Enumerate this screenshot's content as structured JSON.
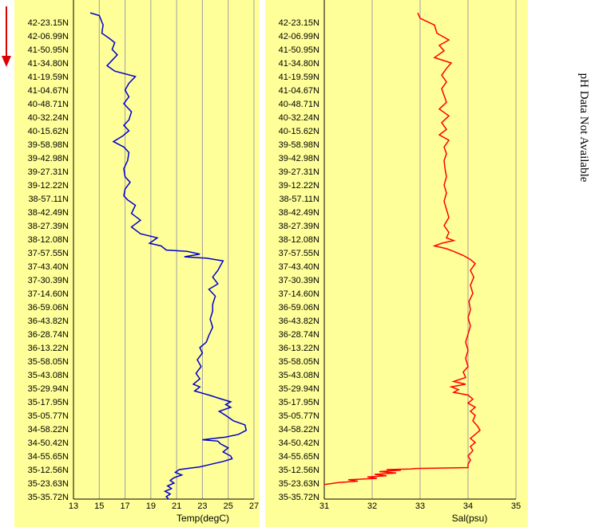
{
  "chart_data": [
    {
      "type": "line",
      "xlabel": "Temp(degC)",
      "ylabel": "",
      "xlim": [
        13,
        27
      ],
      "xticks": [
        13,
        15,
        17,
        19,
        21,
        23,
        25,
        27
      ],
      "grid": true,
      "color": "#0000cc",
      "y_categories": [
        "42-23.15N",
        "42-06.99N",
        "41-50.95N",
        "41-34.80N",
        "41-19.59N",
        "41-04.67N",
        "40-48.71N",
        "40-32.24N",
        "40-15.62N",
        "39-58.98N",
        "39-42.98N",
        "39-27.31N",
        "39-12.22N",
        "38-57.11N",
        "38-42.49N",
        "38-27.39N",
        "38-12.08N",
        "37-57.55N",
        "37-43.40N",
        "37-30.39N",
        "37-14.60N",
        "36-59.06N",
        "36-43.82N",
        "36-28.74N",
        "36-13.22N",
        "35-58.05N",
        "35-43.08N",
        "35-29.94N",
        "35-17.95N",
        "35-05.77N",
        "34-58.22N",
        "34-50.42N",
        "34-55.65N",
        "35-12.56N",
        "35-23.63N",
        "35-35.72N"
      ],
      "series": [
        {
          "points": [
            [
              14.3,
              -0.7
            ],
            [
              15.0,
              -0.5
            ],
            [
              15.3,
              0.2
            ],
            [
              15.2,
              0.8
            ],
            [
              15.8,
              1.2
            ],
            [
              16.2,
              1.5
            ],
            [
              16.0,
              2.0
            ],
            [
              16.4,
              2.4
            ],
            [
              15.9,
              2.9
            ],
            [
              15.6,
              3.2
            ],
            [
              16.2,
              3.6
            ],
            [
              17.8,
              4.0
            ],
            [
              17.3,
              4.5
            ],
            [
              17.0,
              5.0
            ],
            [
              17.3,
              5.5
            ],
            [
              16.9,
              6.0
            ],
            [
              17.5,
              6.6
            ],
            [
              17.3,
              7.2
            ],
            [
              16.9,
              7.6
            ],
            [
              17.3,
              8.0
            ],
            [
              16.8,
              8.4
            ],
            [
              16.1,
              8.8
            ],
            [
              16.9,
              9.2
            ],
            [
              17.3,
              9.6
            ],
            [
              17.2,
              10.2
            ],
            [
              16.9,
              10.8
            ],
            [
              17.0,
              11.4
            ],
            [
              17.4,
              11.8
            ],
            [
              17.0,
              12.3
            ],
            [
              16.9,
              12.8
            ],
            [
              17.2,
              13.1
            ],
            [
              17.8,
              13.5
            ],
            [
              17.5,
              14.1
            ],
            [
              18.2,
              14.6
            ],
            [
              17.5,
              15.1
            ],
            [
              18.2,
              15.6
            ],
            [
              19.5,
              15.9
            ],
            [
              18.9,
              16.3
            ],
            [
              19.8,
              16.5
            ],
            [
              20.2,
              16.8
            ],
            [
              21.8,
              16.9
            ],
            [
              22.8,
              17.1
            ],
            [
              21.6,
              17.3
            ],
            [
              23.3,
              17.4
            ],
            [
              24.6,
              17.6
            ],
            [
              24.2,
              18.3
            ],
            [
              23.8,
              18.8
            ],
            [
              24.2,
              19.3
            ],
            [
              23.5,
              19.7
            ],
            [
              24.0,
              20.2
            ],
            [
              23.8,
              20.8
            ],
            [
              23.8,
              21.3
            ],
            [
              23.6,
              21.9
            ],
            [
              23.8,
              22.5
            ],
            [
              23.5,
              23.1
            ],
            [
              23.3,
              23.6
            ],
            [
              22.8,
              24.0
            ],
            [
              23.0,
              24.4
            ],
            [
              22.6,
              24.9
            ],
            [
              22.9,
              25.4
            ],
            [
              22.5,
              25.9
            ],
            [
              22.8,
              26.3
            ],
            [
              22.3,
              26.7
            ],
            [
              22.8,
              26.9
            ],
            [
              22.4,
              27.2
            ],
            [
              23.5,
              27.5
            ],
            [
              24.5,
              27.8
            ],
            [
              25.2,
              28.0
            ],
            [
              24.8,
              28.2
            ],
            [
              25.2,
              28.4
            ],
            [
              24.3,
              28.7
            ],
            [
              24.8,
              29.0
            ],
            [
              25.4,
              29.4
            ],
            [
              26.3,
              29.7
            ],
            [
              26.4,
              30.1
            ],
            [
              25.8,
              30.4
            ],
            [
              24.8,
              30.6
            ],
            [
              23.0,
              30.8
            ],
            [
              24.2,
              30.9
            ],
            [
              24.4,
              31.1
            ],
            [
              25.0,
              31.4
            ],
            [
              24.6,
              31.7
            ],
            [
              25.2,
              32.0
            ],
            [
              25.3,
              32.2
            ],
            [
              24.6,
              32.4
            ],
            [
              23.7,
              32.6
            ],
            [
              22.8,
              32.8
            ],
            [
              22.0,
              32.9
            ],
            [
              21.2,
              33.0
            ],
            [
              20.9,
              33.2
            ],
            [
              21.4,
              33.4
            ],
            [
              20.8,
              33.6
            ],
            [
              20.5,
              33.8
            ],
            [
              20.8,
              34.0
            ],
            [
              20.3,
              34.2
            ],
            [
              20.6,
              34.4
            ],
            [
              20.1,
              34.6
            ],
            [
              20.5,
              34.8
            ],
            [
              20.2,
              35.0
            ],
            [
              20.4,
              35.2
            ],
            [
              20.0,
              35.5
            ],
            [
              20.5,
              35.8
            ]
          ]
        }
      ]
    },
    {
      "type": "line",
      "xlabel": "Sal(psu)",
      "ylabel": "",
      "xlim": [
        31,
        35
      ],
      "xticks": [
        31,
        32,
        33,
        34,
        35
      ],
      "grid": true,
      "color": "#ff0000",
      "y_categories": [
        "42-23.15N",
        "42-06.99N",
        "41-50.95N",
        "41-34.80N",
        "41-19.59N",
        "41-04.67N",
        "40-48.71N",
        "40-32.24N",
        "40-15.62N",
        "39-58.98N",
        "39-42.98N",
        "39-27.31N",
        "39-12.22N",
        "38-57.11N",
        "38-42.49N",
        "38-27.39N",
        "38-12.08N",
        "37-57.55N",
        "37-43.40N",
        "37-30.39N",
        "37-14.60N",
        "36-59.06N",
        "36-43.82N",
        "36-28.74N",
        "36-13.22N",
        "35-58.05N",
        "35-43.08N",
        "35-29.94N",
        "35-17.95N",
        "35-05.77N",
        "34-58.22N",
        "34-50.42N",
        "34-55.65N",
        "35-12.56N",
        "35-23.63N",
        "35-35.72N"
      ],
      "series": [
        {
          "points": [
            [
              32.95,
              -0.7
            ],
            [
              33.0,
              -0.3
            ],
            [
              33.3,
              0.2
            ],
            [
              33.35,
              0.8
            ],
            [
              33.6,
              1.3
            ],
            [
              33.4,
              1.7
            ],
            [
              33.5,
              2.1
            ],
            [
              33.3,
              2.6
            ],
            [
              33.65,
              3.0
            ],
            [
              33.55,
              3.4
            ],
            [
              33.45,
              3.9
            ],
            [
              33.55,
              4.4
            ],
            [
              33.45,
              4.9
            ],
            [
              33.5,
              5.4
            ],
            [
              33.55,
              5.9
            ],
            [
              33.4,
              6.4
            ],
            [
              33.6,
              6.9
            ],
            [
              33.45,
              7.4
            ],
            [
              33.55,
              7.9
            ],
            [
              33.4,
              8.3
            ],
            [
              33.6,
              8.7
            ],
            [
              33.5,
              9.2
            ],
            [
              33.55,
              9.7
            ],
            [
              33.5,
              10.2
            ],
            [
              33.52,
              10.8
            ],
            [
              33.55,
              11.4
            ],
            [
              33.5,
              12.0
            ],
            [
              33.55,
              12.6
            ],
            [
              33.5,
              13.2
            ],
            [
              33.55,
              13.8
            ],
            [
              33.6,
              14.4
            ],
            [
              33.5,
              15.0
            ],
            [
              33.6,
              15.5
            ],
            [
              33.55,
              15.9
            ],
            [
              33.7,
              16.1
            ],
            [
              33.45,
              16.3
            ],
            [
              33.3,
              16.5
            ],
            [
              33.55,
              16.7
            ],
            [
              33.7,
              16.9
            ],
            [
              33.9,
              17.2
            ],
            [
              34.05,
              17.5
            ],
            [
              34.15,
              17.8
            ],
            [
              34.05,
              18.3
            ],
            [
              34.12,
              18.8
            ],
            [
              34.05,
              19.4
            ],
            [
              34.1,
              20.0
            ],
            [
              34.02,
              20.6
            ],
            [
              34.05,
              21.2
            ],
            [
              34.0,
              21.8
            ],
            [
              34.05,
              22.4
            ],
            [
              34.0,
              23.0
            ],
            [
              33.95,
              23.6
            ],
            [
              34.0,
              24.2
            ],
            [
              33.95,
              24.8
            ],
            [
              34.0,
              25.4
            ],
            [
              33.9,
              25.8
            ],
            [
              33.95,
              26.2
            ],
            [
              33.7,
              26.5
            ],
            [
              33.95,
              26.7
            ],
            [
              33.65,
              26.9
            ],
            [
              33.8,
              27.1
            ],
            [
              33.7,
              27.3
            ],
            [
              34.0,
              27.5
            ],
            [
              34.1,
              27.8
            ],
            [
              34.0,
              28.1
            ],
            [
              34.15,
              28.4
            ],
            [
              34.05,
              28.7
            ],
            [
              34.15,
              29.0
            ],
            [
              34.1,
              29.4
            ],
            [
              34.2,
              29.8
            ],
            [
              34.25,
              30.1
            ],
            [
              34.15,
              30.4
            ],
            [
              34.05,
              30.7
            ],
            [
              34.15,
              31.0
            ],
            [
              34.05,
              31.3
            ],
            [
              34.1,
              31.6
            ],
            [
              34.0,
              32.0
            ],
            [
              34.05,
              32.3
            ],
            [
              34.0,
              32.6
            ],
            [
              34.0,
              32.85
            ],
            [
              33.3,
              32.9
            ],
            [
              32.9,
              32.92
            ],
            [
              32.8,
              32.95
            ],
            [
              32.3,
              33.0
            ],
            [
              32.6,
              33.05
            ],
            [
              32.15,
              33.15
            ],
            [
              32.5,
              33.25
            ],
            [
              32.05,
              33.35
            ],
            [
              32.3,
              33.45
            ],
            [
              31.9,
              33.55
            ],
            [
              32.1,
              33.65
            ],
            [
              31.5,
              33.75
            ],
            [
              31.7,
              33.85
            ],
            [
              31.3,
              33.95
            ],
            [
              31.0,
              34.1
            ]
          ]
        }
      ]
    }
  ],
  "side_note": "pH Data Not Available",
  "colors": {
    "panel_bg": "#ffff99",
    "grid": "#a0a0a0",
    "arrow": "#dd0000"
  }
}
